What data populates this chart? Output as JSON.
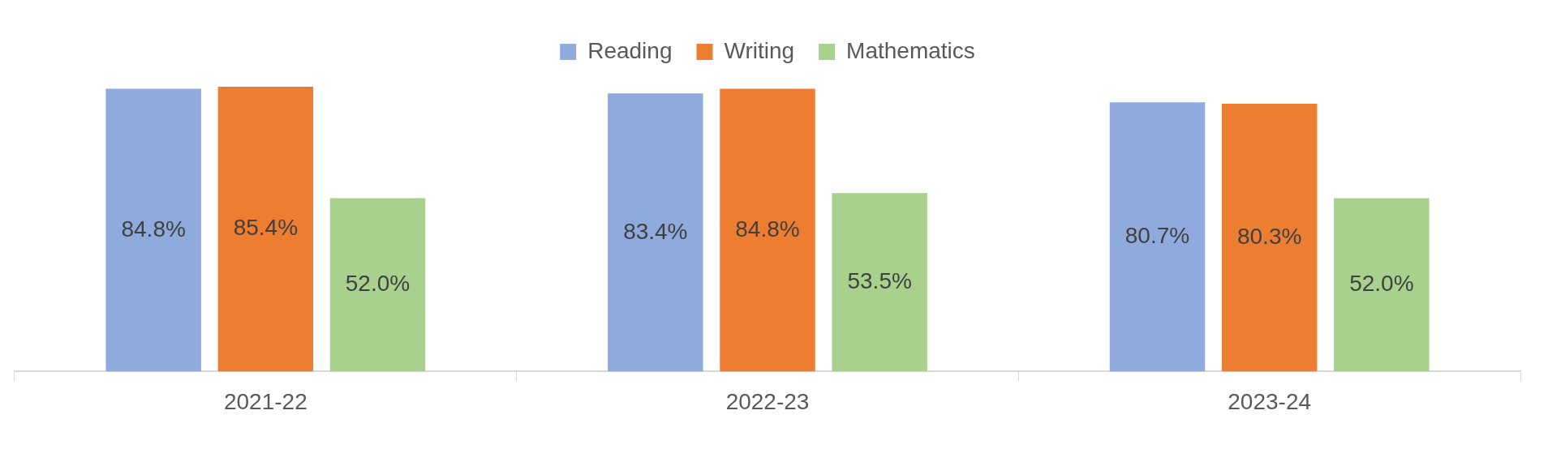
{
  "chart_data": {
    "type": "bar",
    "categories": [
      "2021-22",
      "2022-23",
      "2023-24"
    ],
    "series": [
      {
        "name": "Reading",
        "color": "#8faadc",
        "values": [
          84.8,
          83.4,
          80.7
        ],
        "value_labels": [
          "84.8%",
          "83.4%",
          "80.7%"
        ]
      },
      {
        "name": "Writing",
        "color": "#ed7d31",
        "values": [
          85.4,
          84.8,
          80.3
        ],
        "value_labels": [
          "85.4%",
          "84.8%",
          "80.3%"
        ]
      },
      {
        "name": "Mathematics",
        "color": "#a9d18e",
        "values": [
          52.0,
          53.5,
          52.0
        ],
        "value_labels": [
          "52.0%",
          "53.5%",
          "52.0%"
        ]
      }
    ],
    "legend": "top",
    "grid": false,
    "tick_labels": "x"
  }
}
